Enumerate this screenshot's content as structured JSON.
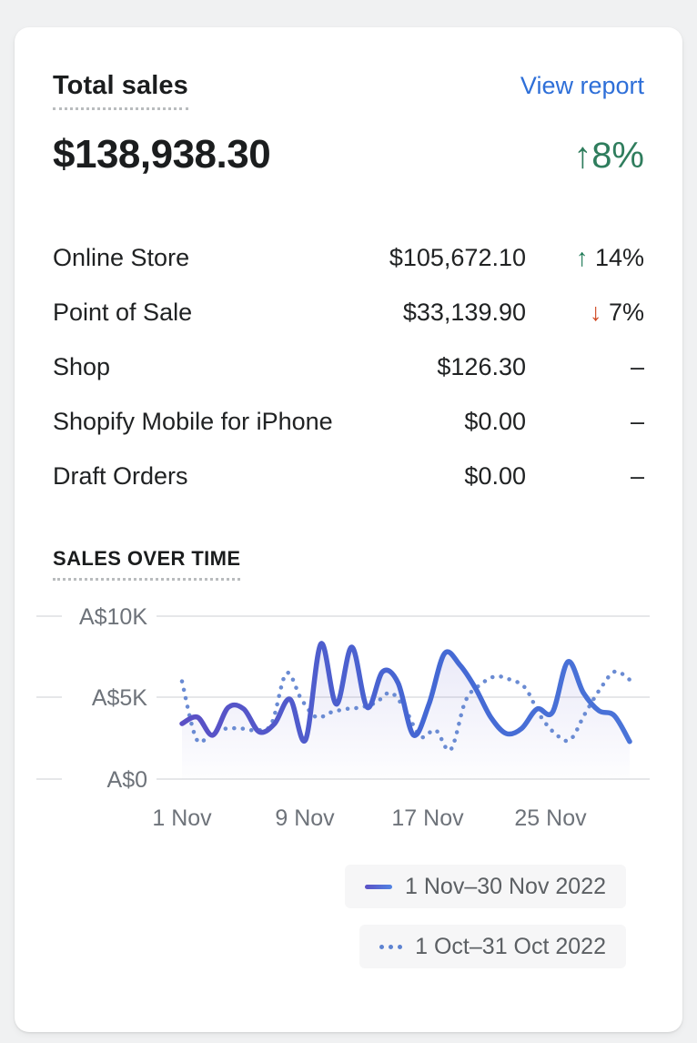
{
  "header": {
    "title": "Total sales",
    "link": "View report"
  },
  "summary": {
    "value": "$138,938.30",
    "arrow": "↑",
    "delta": "8%"
  },
  "breakdown": [
    {
      "label": "Online Store",
      "value": "$105,672.10",
      "arrow": "↑",
      "delta": "14%",
      "trend": "up"
    },
    {
      "label": "Point of Sale",
      "value": "$33,139.90",
      "arrow": "↓",
      "delta": "7%",
      "trend": "down"
    },
    {
      "label": "Shop",
      "value": "$126.30",
      "arrow": "",
      "delta": "–",
      "trend": "flat"
    },
    {
      "label": "Shopify Mobile for iPhone",
      "value": "$0.00",
      "arrow": "",
      "delta": "–",
      "trend": "flat"
    },
    {
      "label": "Draft Orders",
      "value": "$0.00",
      "arrow": "",
      "delta": "–",
      "trend": "flat"
    }
  ],
  "section": {
    "title": "SALES OVER TIME"
  },
  "chart_data": {
    "type": "line",
    "title": "Sales over time",
    "currency": "AUD",
    "ylim": [
      0,
      10000
    ],
    "y_ticks": [
      "A$10K",
      "A$5K",
      "A$0"
    ],
    "x_ticks": [
      "1 Nov",
      "9 Nov",
      "17 Nov",
      "25 Nov"
    ],
    "grid": "horizontal",
    "legend_position": "bottom-right",
    "series": [
      {
        "name": "1 Nov–30 Nov 2022",
        "style": "solid",
        "color_gradient": [
          "#5b50c5",
          "#4a74d8"
        ],
        "x": [
          1,
          2,
          3,
          4,
          5,
          6,
          7,
          8,
          9,
          10,
          11,
          12,
          13,
          14,
          15,
          16,
          17,
          18,
          19,
          20,
          21,
          22,
          23,
          24,
          25,
          26,
          27,
          28,
          29,
          30
        ],
        "values": [
          3400,
          3800,
          2700,
          4400,
          4300,
          2900,
          3400,
          4900,
          2400,
          8300,
          4600,
          8100,
          4400,
          6600,
          5900,
          2700,
          4600,
          7700,
          7000,
          5600,
          3800,
          2800,
          3100,
          4300,
          4100,
          7200,
          5300,
          4200,
          3900,
          2300
        ]
      },
      {
        "name": "1 Oct–31 Oct 2022",
        "style": "dotted",
        "color": "#6a8bd3",
        "x": [
          1,
          2,
          3,
          4,
          5,
          6,
          7,
          8,
          9,
          10,
          11,
          12,
          13,
          14,
          15,
          16,
          17,
          18,
          19,
          20,
          21,
          22,
          23,
          24,
          25,
          26,
          27,
          28,
          29,
          30,
          31
        ],
        "values": [
          6000,
          2400,
          2900,
          3100,
          3100,
          3000,
          3400,
          6500,
          4900,
          3800,
          4100,
          4300,
          4400,
          4700,
          5300,
          4200,
          2600,
          3000,
          1800,
          4800,
          5800,
          6300,
          6100,
          5600,
          3900,
          2800,
          2400,
          4000,
          5500,
          6600,
          6100
        ]
      }
    ]
  },
  "colors": {
    "page_bg": "#f0f1f2",
    "card_bg": "#ffffff",
    "link": "#2e6fd8",
    "positive": "#2f7d5d",
    "negative": "#d04a24",
    "gridline": "#e6e7e9",
    "axis_text": "#6e737a",
    "area_fill": "#615ec9"
  }
}
